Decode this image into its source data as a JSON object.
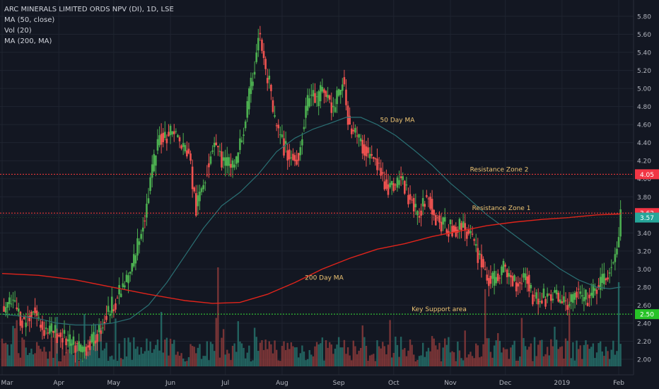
{
  "legend": {
    "title": "ARC MINERALS LIMITED ORDS NPV (DI), 1D, LSE",
    "ma50": "MA (50, close)",
    "vol": "Vol (20)",
    "ma200": "MA (200, MA)"
  },
  "colors": {
    "background": "#131722",
    "up": "#4caf50",
    "down": "#ef5350",
    "ma50": "#2a6f73",
    "ma200": "#e0241b",
    "resistance": "#ff3b3b",
    "support": "#38e238",
    "grid": "#1f2430",
    "annotation": "#f0c674"
  },
  "chart_data": {
    "type": "candlestick",
    "title": "ARC MINERALS LIMITED ORDS NPV (DI), 1D, LSE",
    "y_axis": {
      "min": 1.9,
      "max": 5.9,
      "ticks": [
        "5.80",
        "5.60",
        "5.40",
        "5.20",
        "5.00",
        "4.80",
        "4.60",
        "4.40",
        "4.20",
        "4.00",
        "3.80",
        "3.60",
        "3.40",
        "3.20",
        "3.00",
        "2.80",
        "2.60",
        "2.40",
        "2.20",
        "2.00"
      ]
    },
    "x_axis": {
      "labels": [
        "Mar",
        "Apr",
        "May",
        "Jun",
        "Jul",
        "Aug",
        "Sep",
        "Oct",
        "Nov",
        "Dec",
        "2019",
        "Feb"
      ],
      "label_days": [
        0,
        31,
        61,
        92,
        122,
        153,
        184,
        214,
        245,
        275,
        306,
        337
      ],
      "day_range": [
        0,
        342
      ]
    },
    "grid": true,
    "price_path": [
      [
        0,
        2.55
      ],
      [
        6,
        2.62
      ],
      [
        12,
        2.4
      ],
      [
        17,
        2.55
      ],
      [
        22,
        2.35
      ],
      [
        28,
        2.3
      ],
      [
        33,
        2.25
      ],
      [
        38,
        2.15
      ],
      [
        44,
        2.12
      ],
      [
        50,
        2.2
      ],
      [
        55,
        2.4
      ],
      [
        60,
        2.6
      ],
      [
        65,
        2.75
      ],
      [
        70,
        2.95
      ],
      [
        75,
        3.35
      ],
      [
        79,
        3.7
      ],
      [
        82,
        4.1
      ],
      [
        86,
        4.45
      ],
      [
        90,
        4.5
      ],
      [
        94,
        4.55
      ],
      [
        98,
        4.35
      ],
      [
        102,
        4.3
      ],
      [
        104,
        3.95
      ],
      [
        106,
        3.65
      ],
      [
        109,
        3.9
      ],
      [
        113,
        4.2
      ],
      [
        116,
        4.45
      ],
      [
        120,
        4.2
      ],
      [
        124,
        4.15
      ],
      [
        128,
        4.2
      ],
      [
        132,
        4.55
      ],
      [
        135,
        4.9
      ],
      [
        138,
        5.25
      ],
      [
        140,
        5.6
      ],
      [
        142,
        5.45
      ],
      [
        144,
        5.15
      ],
      [
        146,
        5.05
      ],
      [
        148,
        4.7
      ],
      [
        151,
        4.5
      ],
      [
        154,
        4.35
      ],
      [
        157,
        4.25
      ],
      [
        160,
        4.2
      ],
      [
        163,
        4.35
      ],
      [
        166,
        4.8
      ],
      [
        169,
        4.95
      ],
      [
        172,
        4.85
      ],
      [
        175,
        5.0
      ],
      [
        178,
        4.9
      ],
      [
        181,
        4.75
      ],
      [
        184,
        4.95
      ],
      [
        186,
        5.1
      ],
      [
        188,
        4.8
      ],
      [
        190,
        4.6
      ],
      [
        193,
        4.5
      ],
      [
        197,
        4.35
      ],
      [
        201,
        4.25
      ],
      [
        205,
        4.15
      ],
      [
        208,
        4.0
      ],
      [
        212,
        3.9
      ],
      [
        215,
        3.95
      ],
      [
        218,
        4.0
      ],
      [
        221,
        3.85
      ],
      [
        224,
        3.75
      ],
      [
        227,
        3.55
      ],
      [
        230,
        3.75
      ],
      [
        233,
        3.85
      ],
      [
        236,
        3.6
      ],
      [
        240,
        3.5
      ],
      [
        244,
        3.45
      ],
      [
        248,
        3.45
      ],
      [
        252,
        3.5
      ],
      [
        256,
        3.35
      ],
      [
        259,
        3.2
      ],
      [
        262,
        3.1
      ],
      [
        265,
        2.9
      ],
      [
        268,
        2.85
      ],
      [
        271,
        2.95
      ],
      [
        274,
        3.0
      ],
      [
        278,
        2.9
      ],
      [
        282,
        2.85
      ],
      [
        286,
        2.95
      ],
      [
        290,
        2.7
      ],
      [
        294,
        2.65
      ],
      [
        298,
        2.7
      ],
      [
        302,
        2.7
      ],
      [
        306,
        2.65
      ],
      [
        310,
        2.6
      ],
      [
        314,
        2.75
      ],
      [
        318,
        2.65
      ],
      [
        322,
        2.7
      ],
      [
        325,
        2.8
      ],
      [
        328,
        2.85
      ],
      [
        331,
        2.95
      ],
      [
        334,
        3.05
      ],
      [
        336,
        3.2
      ],
      [
        338,
        3.57
      ]
    ],
    "ma50_path": [
      [
        0,
        2.5
      ],
      [
        10,
        2.48
      ],
      [
        20,
        2.45
      ],
      [
        30,
        2.4
      ],
      [
        40,
        2.38
      ],
      [
        50,
        2.38
      ],
      [
        60,
        2.4
      ],
      [
        70,
        2.45
      ],
      [
        80,
        2.6
      ],
      [
        90,
        2.85
      ],
      [
        100,
        3.15
      ],
      [
        110,
        3.45
      ],
      [
        120,
        3.7
      ],
      [
        130,
        3.85
      ],
      [
        140,
        4.05
      ],
      [
        150,
        4.3
      ],
      [
        160,
        4.45
      ],
      [
        170,
        4.55
      ],
      [
        180,
        4.62
      ],
      [
        188,
        4.68
      ],
      [
        196,
        4.68
      ],
      [
        205,
        4.6
      ],
      [
        215,
        4.48
      ],
      [
        225,
        4.32
      ],
      [
        235,
        4.15
      ],
      [
        245,
        3.95
      ],
      [
        255,
        3.78
      ],
      [
        265,
        3.6
      ],
      [
        275,
        3.45
      ],
      [
        285,
        3.3
      ],
      [
        295,
        3.15
      ],
      [
        305,
        3.0
      ],
      [
        315,
        2.88
      ],
      [
        325,
        2.8
      ],
      [
        332,
        2.78
      ],
      [
        338,
        2.8
      ]
    ],
    "ma200_path": [
      [
        0,
        2.95
      ],
      [
        20,
        2.93
      ],
      [
        40,
        2.88
      ],
      [
        60,
        2.8
      ],
      [
        80,
        2.72
      ],
      [
        100,
        2.65
      ],
      [
        115,
        2.62
      ],
      [
        130,
        2.63
      ],
      [
        145,
        2.72
      ],
      [
        160,
        2.85
      ],
      [
        175,
        3.0
      ],
      [
        190,
        3.12
      ],
      [
        205,
        3.22
      ],
      [
        220,
        3.28
      ],
      [
        235,
        3.36
      ],
      [
        250,
        3.42
      ],
      [
        265,
        3.48
      ],
      [
        280,
        3.52
      ],
      [
        295,
        3.55
      ],
      [
        310,
        3.57
      ],
      [
        325,
        3.6
      ],
      [
        338,
        3.61
      ]
    ],
    "levels": [
      {
        "price": 4.05,
        "label": "Resistance Zone 2",
        "badge": "4.05"
      },
      {
        "price": 3.62,
        "label": "Resistance Zone 1",
        "badge": "3.62"
      },
      {
        "price": 2.5,
        "label": "Key Support area",
        "badge": "2.50"
      }
    ],
    "last_price": {
      "price": 3.57,
      "badge": "3.57"
    },
    "annotations": [
      {
        "text": "50 Day MA",
        "day": 216,
        "price": 4.63
      },
      {
        "text": "200 Day MA",
        "day": 176,
        "price": 2.88
      }
    ],
    "volume_spikes": [
      {
        "day": 118,
        "value": 1.0
      },
      {
        "day": 87,
        "value": 0.55
      },
      {
        "day": 264,
        "value": 0.78
      },
      {
        "day": 310,
        "value": 0.75
      },
      {
        "day": 337,
        "value": 0.85
      }
    ]
  }
}
